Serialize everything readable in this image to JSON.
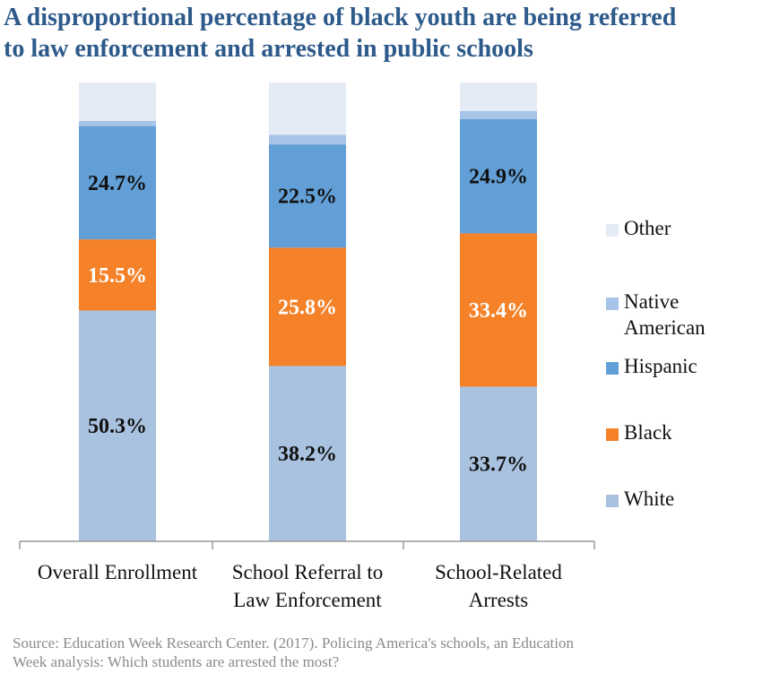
{
  "title_lines": [
    "A disproportional percentage of black youth are being referred",
    "to law enforcement and arrested in public schools"
  ],
  "source_lines": [
    "Source: Education Week Research Center. (2017). Policing America's schools, an Education",
    "Week analysis: Which students are arrested the most?"
  ],
  "colors": {
    "title": "#2d5a8a",
    "White": "#a9c2df",
    "Black": "#f58129",
    "Hispanic": "#629fd6",
    "Native American": "#a5c4e8",
    "Other": "#e5ebf4",
    "axis": "#999999"
  },
  "chart_data": {
    "type": "bar",
    "stacked": true,
    "categories": [
      [
        "Overall Enrollment"
      ],
      [
        "School Referral to",
        "Law Enforcement"
      ],
      [
        "School-Related",
        "Arrests"
      ]
    ],
    "series": [
      {
        "name": "White",
        "values": [
          50.3,
          38.2,
          33.7
        ],
        "labels": [
          "50.3%",
          "38.2%",
          "33.7%"
        ]
      },
      {
        "name": "Black",
        "values": [
          15.5,
          25.8,
          33.4
        ],
        "labels": [
          "15.5%",
          "25.8%",
          "33.4%"
        ]
      },
      {
        "name": "Hispanic",
        "values": [
          24.7,
          22.5,
          24.9
        ],
        "labels": [
          "24.7%",
          "22.5%",
          "24.9%"
        ]
      },
      {
        "name": "Native American",
        "values": [
          1.1,
          2.1,
          1.8
        ],
        "labels": [
          "",
          "",
          ""
        ]
      },
      {
        "name": "Other",
        "values": [
          8.4,
          11.4,
          6.2
        ],
        "labels": [
          "",
          "",
          ""
        ]
      }
    ],
    "legend": {
      "position": "right",
      "order": [
        "Other",
        "Native American",
        "Hispanic",
        "Black",
        "White"
      ],
      "labels": {
        "Other": [
          "Other"
        ],
        "Native American": [
          "Native",
          "American"
        ],
        "Hispanic": [
          "Hispanic"
        ],
        "Black": [
          "Black"
        ],
        "White": [
          "White"
        ]
      }
    },
    "ylim": [
      0,
      100
    ],
    "grid": false,
    "y_axis_visible": false
  }
}
